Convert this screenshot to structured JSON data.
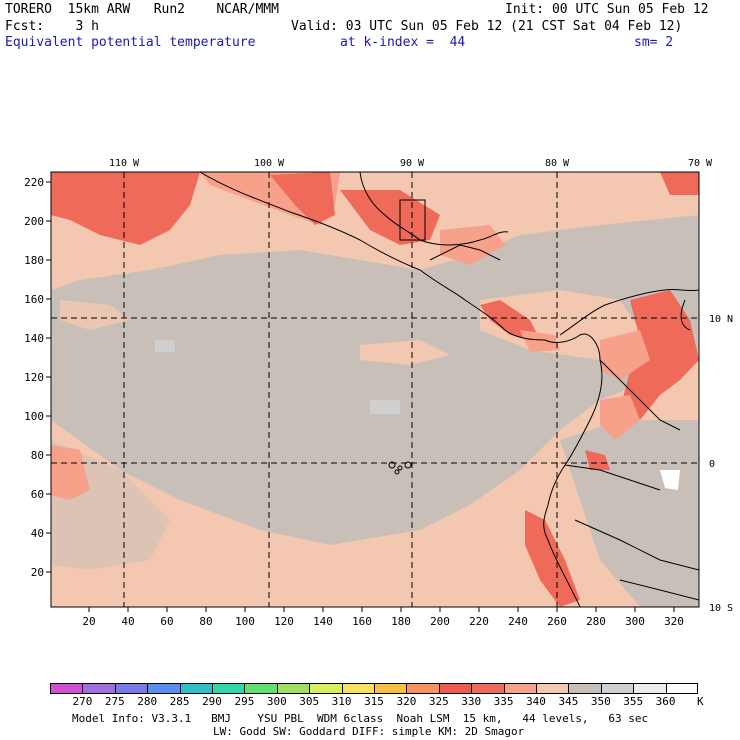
{
  "header": {
    "line1_left": "TORERO  15km ARW   Run2    NCAR/MMM",
    "line1_right": "Init: 00 UTC Sun 05 Feb 12",
    "line2_left": "Fcst:    3 h",
    "line2_right": "Valid: 03 UTC Sun 05 Feb 12 (21 CST Sat 04 Feb 12)",
    "line3_field": "Equivalent potential temperature",
    "line3_level": "at k-index =  44",
    "line3_smooth": "sm= 2"
  },
  "map": {
    "x_ticks": [
      "20",
      "40",
      "60",
      "80",
      "100",
      "120",
      "140",
      "160",
      "180",
      "200",
      "220",
      "240",
      "260",
      "280",
      "300",
      "320"
    ],
    "y_ticks": [
      "220",
      "200",
      "180",
      "160",
      "140",
      "120",
      "100",
      "80",
      "60",
      "40",
      "20"
    ],
    "lon_labels": [
      "110 W",
      "100 W",
      "90 W",
      "80 W",
      "70 W"
    ],
    "lat_labels": [
      "10 N",
      "0",
      "10 S"
    ],
    "colors": {
      "frame": "#000000",
      "background_gray": "#c8c0b8",
      "peach": "#f4c8b0",
      "salmon": "#f7a08a",
      "red": "#f06a5a"
    }
  },
  "colorbar": {
    "labels": [
      "270",
      "275",
      "280",
      "285",
      "290",
      "295",
      "300",
      "305",
      "310",
      "315",
      "320",
      "325",
      "330",
      "335",
      "340",
      "345",
      "350",
      "355",
      "360"
    ],
    "unit": "K",
    "colors": [
      "#d050d0",
      "#a070e0",
      "#7a7ae8",
      "#5a8ef0",
      "#30c0c8",
      "#30d8a8",
      "#60e070",
      "#a0e060",
      "#d8f060",
      "#f8e060",
      "#f8c040",
      "#f89060",
      "#f05a50",
      "#f06a5a",
      "#f7a08a",
      "#f4c8b0",
      "#c8c0b8",
      "#d0d0d0",
      "#ececec",
      "#ffffff"
    ]
  },
  "footer": {
    "line1": "Model Info: V3.3.1   BMJ    YSU PBL  WDM 6class  Noah LSM  15 km,   44 levels,   63 sec",
    "line2": "LW: Godd SW: Goddard DIFF: simple KM: 2D Smagor"
  }
}
